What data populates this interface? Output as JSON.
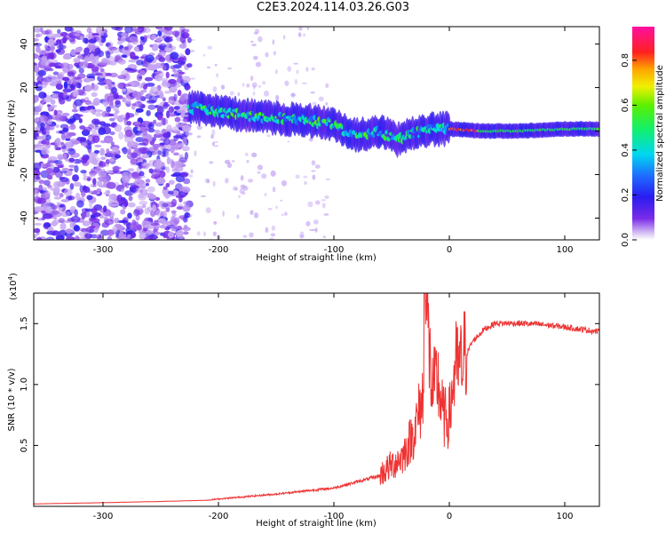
{
  "figure_title": "C2E3.2024.114.03.26.G03",
  "chart_data": [
    {
      "type": "heatmap",
      "title": "C2E3.2024.114.03.26.G03",
      "xlabel": "Height of straight line (km)",
      "ylabel": "Frequency (Hz)",
      "xlim": [
        -360,
        130
      ],
      "ylim": [
        -50,
        48
      ],
      "xticks": [
        -300,
        -200,
        -100,
        0,
        100
      ],
      "yticks": [
        -40,
        -20,
        0,
        20,
        40
      ],
      "colorbar": {
        "label": "Normalized spectral amplitude",
        "range": [
          0,
          0.95
        ],
        "ticks": [
          0.0,
          0.2,
          0.4,
          0.6,
          0.8
        ],
        "colormap": "rainbow (purple-blue-cyan-green-yellow-orange-red-magenta)"
      },
      "noise_region_x": [
        -360,
        -225
      ],
      "signal_ridge": [
        {
          "x": -225,
          "y": 11
        },
        {
          "x": -200,
          "y": 9
        },
        {
          "x": -175,
          "y": 7
        },
        {
          "x": -150,
          "y": 6
        },
        {
          "x": -125,
          "y": 5
        },
        {
          "x": -100,
          "y": 3
        },
        {
          "x": -80,
          "y": -2
        },
        {
          "x": -60,
          "y": 0
        },
        {
          "x": -45,
          "y": -4
        },
        {
          "x": -30,
          "y": -1
        },
        {
          "x": -15,
          "y": 1
        },
        {
          "x": 0,
          "y": 1
        },
        {
          "x": 30,
          "y": 0
        },
        {
          "x": 60,
          "y": 0
        },
        {
          "x": 100,
          "y": 1
        },
        {
          "x": 130,
          "y": 1
        }
      ],
      "grid": false
    },
    {
      "type": "line",
      "xlabel": "Height of straight line (km)",
      "ylabel": "SNR (10 * v/v)",
      "y_multiplier_label": "(x10",
      "y_multiplier_exp": "4",
      "y_multiplier_close": ")",
      "xlim": [
        -360,
        130
      ],
      "ylim": [
        0,
        1.75
      ],
      "xticks": [
        -300,
        -200,
        -100,
        0,
        100
      ],
      "yticks": [
        0.5,
        1.0,
        1.5
      ],
      "ytick_labels": [
        "0.5",
        "1.0",
        "1.5"
      ],
      "color": "#ee3333",
      "series": [
        {
          "x": [
            -360,
            -300,
            -250,
            -210,
            -200,
            -150,
            -100,
            -80,
            -60,
            -40,
            -30,
            -22,
            -21,
            -15,
            -10,
            -5,
            0,
            5,
            10,
            15,
            20,
            30,
            40,
            50,
            60,
            80,
            100,
            130
          ],
          "y": [
            0.02,
            0.03,
            0.04,
            0.05,
            0.06,
            0.1,
            0.15,
            0.2,
            0.25,
            0.4,
            0.6,
            0.9,
            1.75,
            0.9,
            1.0,
            0.7,
            0.7,
            1.1,
            1.1,
            1.25,
            1.35,
            1.45,
            1.5,
            1.5,
            1.5,
            1.49,
            1.47,
            1.43
          ]
        }
      ],
      "grid": false
    }
  ]
}
